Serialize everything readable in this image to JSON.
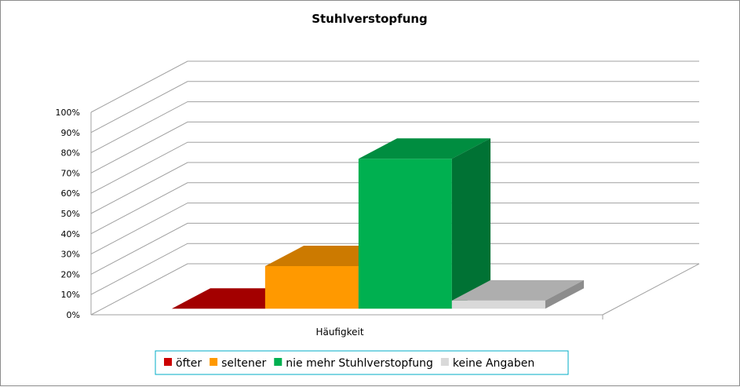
{
  "chart_data": {
    "type": "bar",
    "title": "Stuhlverstopfung",
    "categories": [
      "Häufigkeit"
    ],
    "series": [
      {
        "name": "öfter",
        "values": [
          0
        ],
        "color": "#cc0000"
      },
      {
        "name": "seltener",
        "values": [
          21
        ],
        "color": "#ff9900"
      },
      {
        "name": "nie mehr Stuhlverstopfung",
        "values": [
          74
        ],
        "color": "#00b050"
      },
      {
        "name": "keine Angaben",
        "values": [
          4
        ],
        "color": "#d9d9d9"
      }
    ],
    "ylim": [
      0,
      100
    ],
    "yticks": [
      "0%",
      "10%",
      "20%",
      "30%",
      "40%",
      "50%",
      "60%",
      "70%",
      "80%",
      "90%",
      "100%"
    ],
    "grid": true,
    "legend": "bottom",
    "three_d": true
  }
}
